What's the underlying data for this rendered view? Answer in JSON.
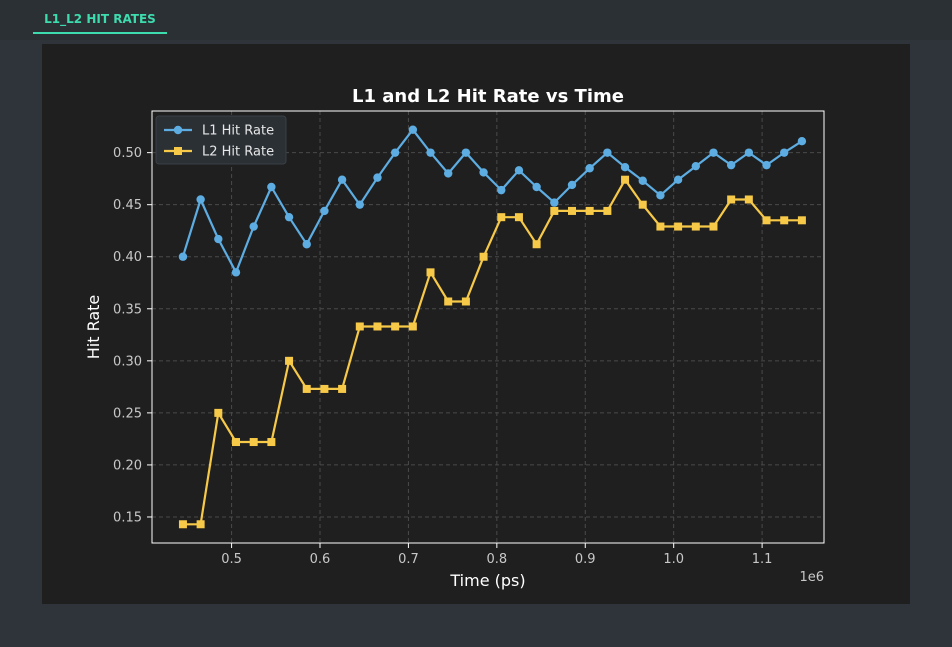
{
  "tab": {
    "label": "L1_L2 HIT RATES"
  },
  "chart_data": {
    "type": "line",
    "title": "L1 and L2 Hit Rate vs Time",
    "xlabel": "Time (ps)",
    "ylabel": "Hit Rate",
    "x_offset_label": "1e6",
    "xlim": [
      0.41,
      1.17
    ],
    "ylim": [
      0.125,
      0.54
    ],
    "xticks": [
      0.5,
      0.6,
      0.7,
      0.8,
      0.9,
      1.0,
      1.1
    ],
    "xtick_labels": [
      "0.5",
      "0.6",
      "0.7",
      "0.8",
      "0.9",
      "1.0",
      "1.1"
    ],
    "yticks": [
      0.15,
      0.2,
      0.25,
      0.3,
      0.35,
      0.4,
      0.45,
      0.5
    ],
    "ytick_labels": [
      "0.15",
      "0.20",
      "0.25",
      "0.30",
      "0.35",
      "0.40",
      "0.45",
      "0.50"
    ],
    "grid": true,
    "legend_position": "top-left",
    "x": [
      0.445,
      0.465,
      0.485,
      0.505,
      0.525,
      0.545,
      0.565,
      0.585,
      0.605,
      0.625,
      0.645,
      0.665,
      0.685,
      0.705,
      0.725,
      0.745,
      0.765,
      0.785,
      0.805,
      0.825,
      0.845,
      0.865,
      0.885,
      0.905,
      0.925,
      0.945,
      0.965,
      0.985,
      1.005,
      1.025,
      1.045,
      1.065,
      1.085,
      1.105,
      1.125,
      1.145
    ],
    "series": [
      {
        "name": "L1 Hit Rate",
        "color": "#5dade2",
        "marker": "circle",
        "values": [
          0.4,
          0.455,
          0.417,
          0.385,
          0.429,
          0.467,
          0.438,
          0.412,
          0.444,
          0.474,
          0.45,
          0.476,
          0.5,
          0.522,
          0.5,
          0.48,
          0.5,
          0.481,
          0.464,
          0.483,
          0.467,
          0.452,
          0.469,
          0.485,
          0.5,
          0.486,
          0.473,
          0.459,
          0.474,
          0.487,
          0.5,
          0.488,
          0.5,
          0.488,
          0.5,
          0.511
        ]
      },
      {
        "name": "L2 Hit Rate",
        "color": "#f7c948",
        "marker": "square",
        "values": [
          0.143,
          0.143,
          0.25,
          0.222,
          0.222,
          0.222,
          0.3,
          0.273,
          0.273,
          0.273,
          0.333,
          0.333,
          0.333,
          0.333,
          0.385,
          0.357,
          0.357,
          0.4,
          0.438,
          0.438,
          0.412,
          0.444,
          0.444,
          0.444,
          0.444,
          0.474,
          0.45,
          0.429,
          0.429,
          0.429,
          0.429,
          0.455,
          0.455,
          0.435,
          0.435,
          0.435
        ]
      }
    ]
  }
}
